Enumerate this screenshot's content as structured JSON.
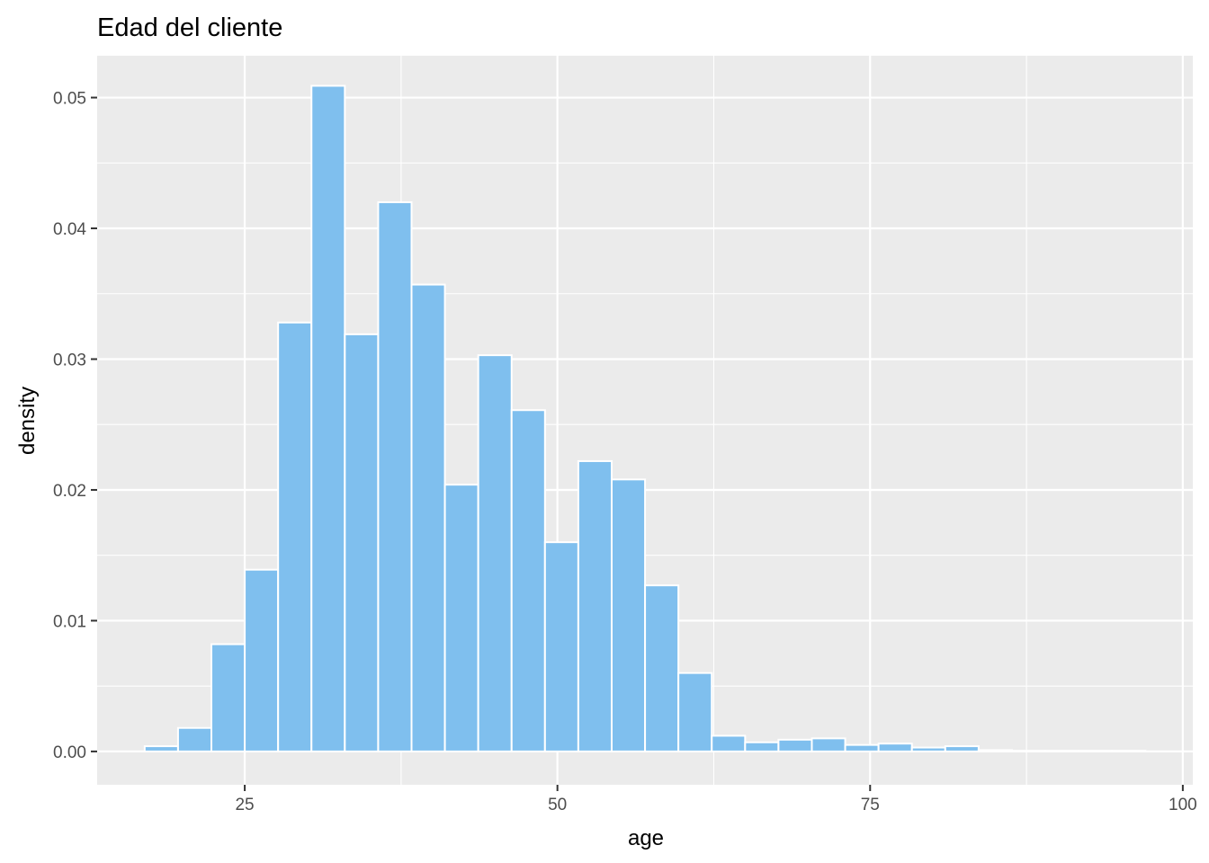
{
  "chart_data": {
    "type": "histogram",
    "title": "Edad del cliente",
    "xlabel": "age",
    "ylabel": "density",
    "xlim": [
      13.2,
      100.8
    ],
    "ylim": [
      -0.00255,
      0.0532
    ],
    "x_ticks": [
      25,
      50,
      75,
      100
    ],
    "x_tick_labels": [
      "25",
      "50",
      "75",
      "100"
    ],
    "y_ticks": [
      0.0,
      0.01,
      0.02,
      0.03,
      0.04,
      0.05
    ],
    "y_tick_labels": [
      "0.00",
      "0.01",
      "0.02",
      "0.03",
      "0.04",
      "0.05"
    ],
    "bin_width": 2.667,
    "first_bin_start": 17.0,
    "values": [
      0.0004,
      0.0018,
      0.0082,
      0.0139,
      0.0328,
      0.0509,
      0.0319,
      0.042,
      0.0357,
      0.0204,
      0.0303,
      0.0261,
      0.016,
      0.0222,
      0.0208,
      0.0127,
      0.006,
      0.0012,
      0.0007,
      0.0009,
      0.001,
      0.0005,
      0.0006,
      0.0003,
      0.0004,
      0.0001,
      5e-05,
      5e-05,
      5e-05,
      5e-05
    ],
    "grid": true,
    "bar_fill": "#7fbfee",
    "bar_outline": "#ffffff",
    "panel_background": "#ebebeb"
  }
}
